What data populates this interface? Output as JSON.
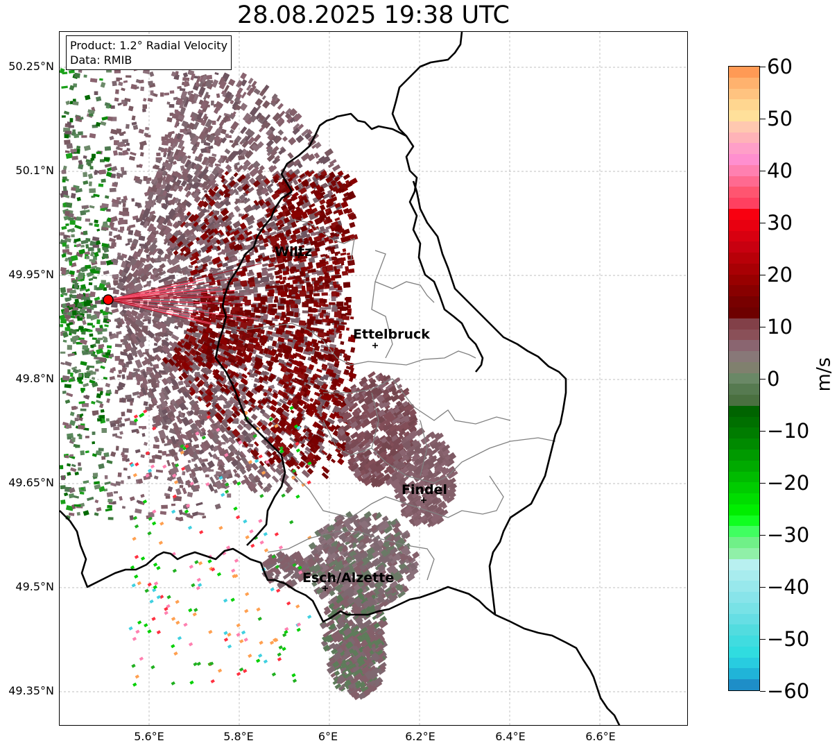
{
  "title": "28.08.2025 19:38 UTC",
  "info_box": {
    "line1": "Product: 1.2° Radial Velocity",
    "line2": "Data: RMIB"
  },
  "lat_labels": [
    "50.25°N",
    "50.1°N",
    "49.95°N",
    "49.8°N",
    "49.65°N",
    "49.5°N",
    "49.35°N"
  ],
  "lon_labels": [
    "5.6°E",
    "5.8°E",
    "6°E",
    "6.2°E",
    "6.4°E",
    "6.6°E"
  ],
  "cities": [
    {
      "name": "Wiltz"
    },
    {
      "name": "Ettelbruck"
    },
    {
      "name": "Findel"
    },
    {
      "name": "Esch/Alzette"
    }
  ],
  "colorbar": {
    "unit": "m/s",
    "ticks": [
      "60",
      "50",
      "40",
      "30",
      "20",
      "10",
      "0",
      "−10",
      "−20",
      "−30",
      "−40",
      "−50",
      "−60"
    ],
    "colors": [
      "#ff9a55",
      "#ffb26e",
      "#ffc380",
      "#ffd690",
      "#ffe09a",
      "#ffc8b0",
      "#ffb3b8",
      "#ff9fc8",
      "#ff8fcf",
      "#ff80b0",
      "#ff6a90",
      "#ff5570",
      "#ff4060",
      "#f80010",
      "#e80010",
      "#d80010",
      "#c80010",
      "#b80008",
      "#a80004",
      "#980000",
      "#880000",
      "#780000",
      "#6e0000",
      "#824048",
      "#8a5058",
      "#8a6570",
      "#887878",
      "#80806e",
      "#6a8866",
      "#567a50",
      "#4a7040",
      "#006400",
      "#007000",
      "#007c00",
      "#008a00",
      "#009a00",
      "#00aa00",
      "#00bb00",
      "#00cc00",
      "#00dd00",
      "#00ee00",
      "#10ff20",
      "#40ff60",
      "#70f088",
      "#90f0a8",
      "#b8f0f0",
      "#a8ecee",
      "#98e8ec",
      "#88e4ea",
      "#78e2e6",
      "#66dee4",
      "#52dcdf",
      "#40dce0",
      "#30dce0",
      "#28cce0",
      "#20b4d8",
      "#1e8ec8"
    ]
  }
}
